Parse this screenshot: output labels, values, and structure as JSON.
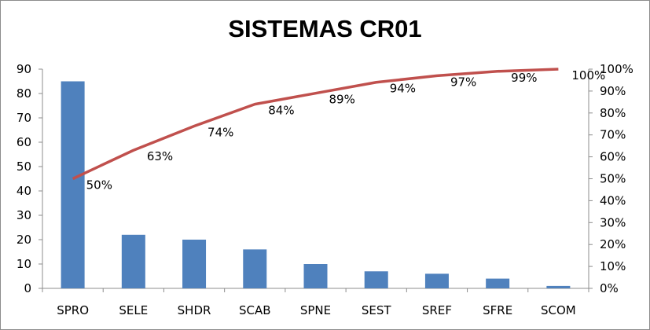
{
  "chart_data": {
    "type": "bar",
    "title": "SISTEMAS CR01",
    "categories": [
      "SPRO",
      "SELE",
      "SHDR",
      "SCAB",
      "SPNE",
      "SEST",
      "SREF",
      "SFRE",
      "SCOM"
    ],
    "series": [
      {
        "type": "bar",
        "values": [
          85,
          22,
          20,
          16,
          10,
          7,
          6,
          4,
          1
        ],
        "color": "#4f81bd",
        "axis": "left"
      },
      {
        "type": "line",
        "values": [
          0.5,
          0.63,
          0.74,
          0.84,
          0.89,
          0.94,
          0.97,
          0.99,
          1.0
        ],
        "labels": [
          "50%",
          "63%",
          "74%",
          "84%",
          "89%",
          "94%",
          "97%",
          "99%",
          "100%"
        ],
        "color": "#c0504d",
        "axis": "right"
      }
    ],
    "y_left": {
      "range": [
        0,
        90
      ],
      "ticks": [
        "0",
        "10",
        "20",
        "30",
        "40",
        "50",
        "60",
        "70",
        "80",
        "90"
      ]
    },
    "y_right": {
      "range": [
        0,
        1
      ],
      "ticks": [
        "0%",
        "10%",
        "20%",
        "30%",
        "40%",
        "50%",
        "60%",
        "70%",
        "80%",
        "90%",
        "100%"
      ]
    },
    "grid": false,
    "legend": "none"
  }
}
